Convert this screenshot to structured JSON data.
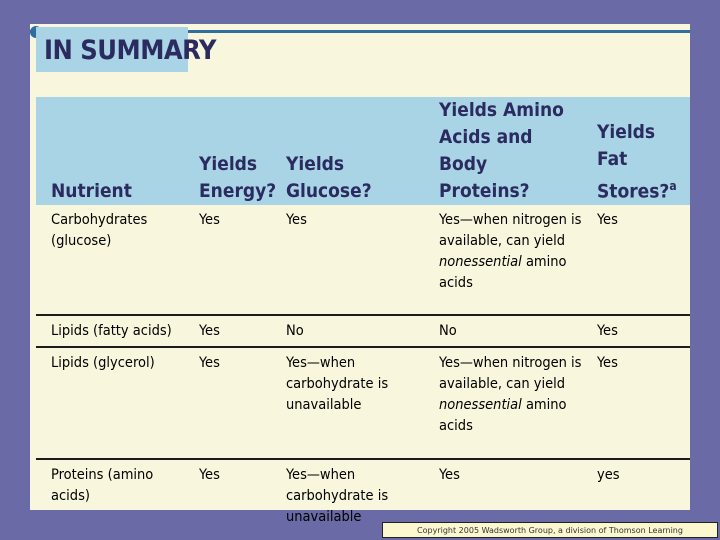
{
  "summary": {
    "title": "IN SUMMARY"
  },
  "table": {
    "headers": [
      "Nutrient",
      "Yields Energy?",
      "Yields Glucose?",
      "Yields Amino Acids and Body Proteins?",
      "Yields Fat Stores?"
    ],
    "header_footnote": "a",
    "rows": [
      [
        "Carbohydrates (glucose)",
        "Yes",
        "Yes",
        "Yes—when nitrogen is available, can yield ",
        "Yes"
      ],
      [
        "Lipids (fatty acids)",
        "Yes",
        "No",
        "No",
        "Yes"
      ],
      [
        "Lipids (glycerol)",
        "Yes",
        "Yes—when carbohydrate is unavailable",
        "Yes—when nitrogen is available, can yield ",
        "Yes"
      ],
      [
        "Proteins (amino acids)",
        "Yes",
        "Yes—when carbohydrate is unavailable",
        "Yes",
        "yes"
      ]
    ],
    "italic_term": "nonessential",
    "term_suffix": " amino acids"
  },
  "footer": {
    "copyright": "Copyright 2005 Wadsworth Group, a division of Thomson Learning"
  },
  "colors": {
    "background": "#6a6aa6",
    "slide": "#f8f6dc",
    "header_band": "#a8d4e6",
    "heading_text": "#2b2b60",
    "accent": "#2f6f9f"
  }
}
